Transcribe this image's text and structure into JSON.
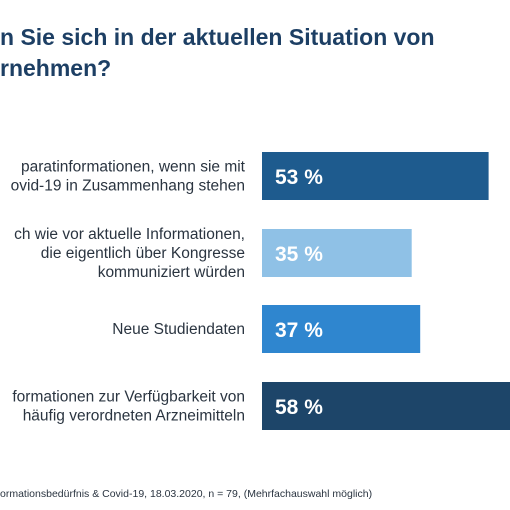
{
  "title_lines": [
    "n Sie sich in der aktuellen Situation von",
    "rnehmen?"
  ],
  "footer": "ormationsbedürfnis & Covid-19, 18.03.2020, n = 79, (Mehrfachauswahl möglich)",
  "chart_data": {
    "type": "bar",
    "orientation": "horizontal",
    "categories": [
      [
        "parat­informationen, wenn sie mit",
        "ovid-19 in Zusammenhang stehen"
      ],
      [
        "ch wie vor aktuelle Informationen,",
        "die eigentlich über Kongresse",
        "kommuniziert würden"
      ],
      [
        "Neue Studiendaten"
      ],
      [
        "formationen zur Verfügbarkeit von",
        "häufig verordneten Arzneimitteln"
      ]
    ],
    "values": [
      53,
      35,
      37,
      58
    ],
    "value_labels": [
      "53 %",
      "35 %",
      "37 %",
      "58 %"
    ],
    "colors": [
      "#1e5b8e",
      "#8fc1e6",
      "#2f86cf",
      "#1d4569"
    ],
    "xlim": [
      0,
      58
    ],
    "grid": false,
    "legend": "none"
  }
}
